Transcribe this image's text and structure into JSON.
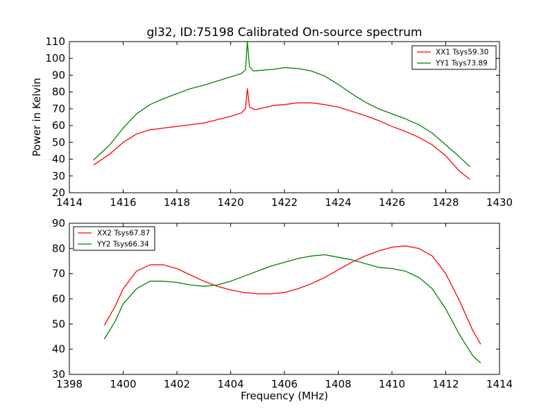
{
  "chart_data": [
    {
      "type": "line",
      "title": "gl32, ID:75198 Calibrated On-source spectrum",
      "xlabel": "",
      "ylabel": "Power in Kelvin",
      "xlim": [
        1414,
        1430
      ],
      "ylim": [
        20,
        110
      ],
      "xticks": [
        1414,
        1416,
        1418,
        1420,
        1422,
        1424,
        1426,
        1428,
        1430
      ],
      "yticks": [
        20,
        30,
        40,
        50,
        60,
        70,
        80,
        90,
        100,
        110
      ],
      "grid": false,
      "legend_position": "top-right",
      "series": [
        {
          "name": "XX1 Tsys59.30",
          "color": "#ff0000",
          "points": [
            [
              1414.9,
              36.5
            ],
            [
              1415.5,
              43
            ],
            [
              1416.0,
              50
            ],
            [
              1416.5,
              55
            ],
            [
              1417.0,
              57.5
            ],
            [
              1417.5,
              58.5
            ],
            [
              1418.0,
              59.5
            ],
            [
              1418.5,
              60.5
            ],
            [
              1419.0,
              61.5
            ],
            [
              1419.5,
              63.5
            ],
            [
              1420.0,
              65.5
            ],
            [
              1420.4,
              67.5
            ],
            [
              1420.55,
              70
            ],
            [
              1420.62,
              82
            ],
            [
              1420.7,
              71
            ],
            [
              1420.9,
              69.5
            ],
            [
              1421.2,
              70.5
            ],
            [
              1421.6,
              72
            ],
            [
              1422.0,
              72.5
            ],
            [
              1422.5,
              73.5
            ],
            [
              1423.0,
              73.5
            ],
            [
              1423.5,
              72.5
            ],
            [
              1424.0,
              71
            ],
            [
              1424.5,
              68.5
            ],
            [
              1425.0,
              66
            ],
            [
              1425.5,
              63
            ],
            [
              1426.0,
              59.5
            ],
            [
              1426.5,
              56.5
            ],
            [
              1427.0,
              53
            ],
            [
              1427.5,
              48.5
            ],
            [
              1428.0,
              42
            ],
            [
              1428.5,
              33
            ],
            [
              1428.9,
              28
            ]
          ]
        },
        {
          "name": "YY1 Tsys73.89",
          "color": "#008000",
          "points": [
            [
              1414.9,
              39.5
            ],
            [
              1415.5,
              48.5
            ],
            [
              1416.0,
              58.5
            ],
            [
              1416.5,
              67
            ],
            [
              1417.0,
              72.5
            ],
            [
              1417.5,
              76
            ],
            [
              1418.0,
              79
            ],
            [
              1418.5,
              82
            ],
            [
              1419.0,
              84
            ],
            [
              1419.5,
              86.5
            ],
            [
              1420.0,
              89
            ],
            [
              1420.4,
              91
            ],
            [
              1420.55,
              93
            ],
            [
              1420.62,
              110
            ],
            [
              1420.7,
              95
            ],
            [
              1420.85,
              92.5
            ],
            [
              1421.2,
              93
            ],
            [
              1421.6,
              93.5
            ],
            [
              1422.0,
              94.5
            ],
            [
              1422.5,
              94
            ],
            [
              1423.0,
              92.5
            ],
            [
              1423.5,
              89.5
            ],
            [
              1424.0,
              84.5
            ],
            [
              1424.5,
              79
            ],
            [
              1425.0,
              74
            ],
            [
              1425.5,
              70
            ],
            [
              1426.0,
              67
            ],
            [
              1426.5,
              64
            ],
            [
              1427.0,
              60.5
            ],
            [
              1427.5,
              55.5
            ],
            [
              1428.0,
              48.5
            ],
            [
              1428.5,
              41.5
            ],
            [
              1428.9,
              35.5
            ]
          ]
        }
      ]
    },
    {
      "type": "line",
      "title": "",
      "xlabel": "Frequency (MHz)",
      "ylabel": "",
      "xlim": [
        1398,
        1414
      ],
      "ylim": [
        30,
        90
      ],
      "xticks": [
        1398,
        1400,
        1402,
        1404,
        1406,
        1408,
        1410,
        1412,
        1414
      ],
      "yticks": [
        30,
        40,
        50,
        60,
        70,
        80,
        90
      ],
      "grid": false,
      "legend_position": "top-left",
      "series": [
        {
          "name": "XX2 Tsys67.87",
          "color": "#ff0000",
          "points": [
            [
              1399.3,
              49.5
            ],
            [
              1399.7,
              57
            ],
            [
              1400.0,
              64
            ],
            [
              1400.5,
              71
            ],
            [
              1401.0,
              73.5
            ],
            [
              1401.5,
              73.5
            ],
            [
              1402.0,
              72
            ],
            [
              1402.5,
              69.5
            ],
            [
              1403.0,
              67
            ],
            [
              1403.5,
              65
            ],
            [
              1404.0,
              63.5
            ],
            [
              1404.5,
              62.5
            ],
            [
              1405.0,
              62
            ],
            [
              1405.5,
              62
            ],
            [
              1406.0,
              62.5
            ],
            [
              1406.5,
              64
            ],
            [
              1407.0,
              66
            ],
            [
              1407.5,
              68.5
            ],
            [
              1408.0,
              71.5
            ],
            [
              1408.5,
              74.5
            ],
            [
              1409.0,
              77
            ],
            [
              1409.5,
              79
            ],
            [
              1410.0,
              80.5
            ],
            [
              1410.5,
              81
            ],
            [
              1411.0,
              80
            ],
            [
              1411.5,
              77
            ],
            [
              1412.0,
              70
            ],
            [
              1412.5,
              59.5
            ],
            [
              1413.0,
              47.5
            ],
            [
              1413.3,
              42
            ]
          ]
        },
        {
          "name": "YY2 Tsys66.34",
          "color": "#008000",
          "points": [
            [
              1399.3,
              44
            ],
            [
              1399.7,
              51
            ],
            [
              1400.0,
              58
            ],
            [
              1400.5,
              64
            ],
            [
              1401.0,
              67
            ],
            [
              1401.5,
              67
            ],
            [
              1402.0,
              66.5
            ],
            [
              1402.5,
              65.5
            ],
            [
              1403.0,
              65
            ],
            [
              1403.5,
              65.5
            ],
            [
              1404.0,
              67
            ],
            [
              1404.5,
              69
            ],
            [
              1405.0,
              71
            ],
            [
              1405.5,
              73
            ],
            [
              1406.0,
              74.5
            ],
            [
              1406.5,
              76
            ],
            [
              1407.0,
              77
            ],
            [
              1407.5,
              77.5
            ],
            [
              1408.0,
              76.5
            ],
            [
              1408.5,
              75.5
            ],
            [
              1409.0,
              74
            ],
            [
              1409.5,
              72.5
            ],
            [
              1410.0,
              72
            ],
            [
              1410.5,
              71
            ],
            [
              1411.0,
              68.5
            ],
            [
              1411.5,
              64
            ],
            [
              1412.0,
              56
            ],
            [
              1412.5,
              46
            ],
            [
              1413.0,
              37.5
            ],
            [
              1413.3,
              34.5
            ]
          ]
        }
      ]
    }
  ]
}
